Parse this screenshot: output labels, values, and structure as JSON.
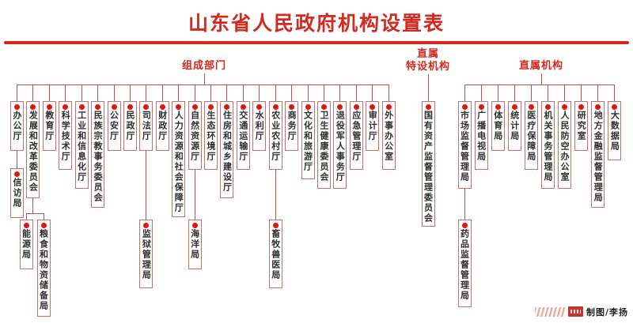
{
  "title": "山东省人民政府机构设置表",
  "credit": {
    "logo": "newspaper-logo",
    "text": "制图/李扬"
  },
  "colors": {
    "accent_red": "#d5281e",
    "dot_red": "#da1710",
    "connector_red": "#b8514c",
    "box_border": "#c9706b",
    "text_dark": "#2e2e2e"
  },
  "sections": [
    {
      "label_lines": [
        "组成部门"
      ],
      "departments": [
        {
          "name": "办公厅",
          "children": [
            {
              "name": "信访局"
            }
          ]
        },
        {
          "name": "发展和改革委员会",
          "children": [
            {
              "name": "能源局"
            },
            {
              "name": "粮食和物资储备局"
            }
          ]
        },
        {
          "name": "教育厅"
        },
        {
          "name": "科学技术厅"
        },
        {
          "name": "工业和信息化厅"
        },
        {
          "name": "民族宗教事务委员会"
        },
        {
          "name": "公安厅"
        },
        {
          "name": "民政厅"
        },
        {
          "name": "司法厅",
          "children": [
            {
              "name": "监狱管理局"
            }
          ]
        },
        {
          "name": "财政厅"
        },
        {
          "name": "人力资源和社会保障厅"
        },
        {
          "name": "自然资源厅",
          "children": [
            {
              "name": "海洋局"
            }
          ]
        },
        {
          "name": "生态环境厅"
        },
        {
          "name": "住房和城乡建设厅"
        },
        {
          "name": "交通运输厅"
        },
        {
          "name": "水利厅"
        },
        {
          "name": "农业农村厅",
          "children": [
            {
              "name": "畜牧兽医局"
            }
          ]
        },
        {
          "name": "商务厅"
        },
        {
          "name": "文化和旅游厅"
        },
        {
          "name": "卫生健康委员会"
        },
        {
          "name": "退役军人事务厅"
        },
        {
          "name": "应急管理厅"
        },
        {
          "name": "审计厅"
        },
        {
          "name": "外事办公室"
        }
      ]
    },
    {
      "label_lines": [
        "直属",
        "特设机构"
      ],
      "departments": [
        {
          "name": "国有资产监督管理委员会"
        }
      ]
    },
    {
      "label_lines": [
        "直属机构"
      ],
      "departments": [
        {
          "name": "市场监督管理局",
          "children": [
            {
              "name": "药品监督管理局"
            }
          ]
        },
        {
          "name": "广播电视局"
        },
        {
          "name": "体育局"
        },
        {
          "name": "统计局"
        },
        {
          "name": "医疗保障局"
        },
        {
          "name": "机关事务管理局"
        },
        {
          "name": "人民防空办公室"
        },
        {
          "name": "研究室"
        },
        {
          "name": "地方金融监督管理局"
        },
        {
          "name": "大数据局"
        }
      ]
    }
  ]
}
